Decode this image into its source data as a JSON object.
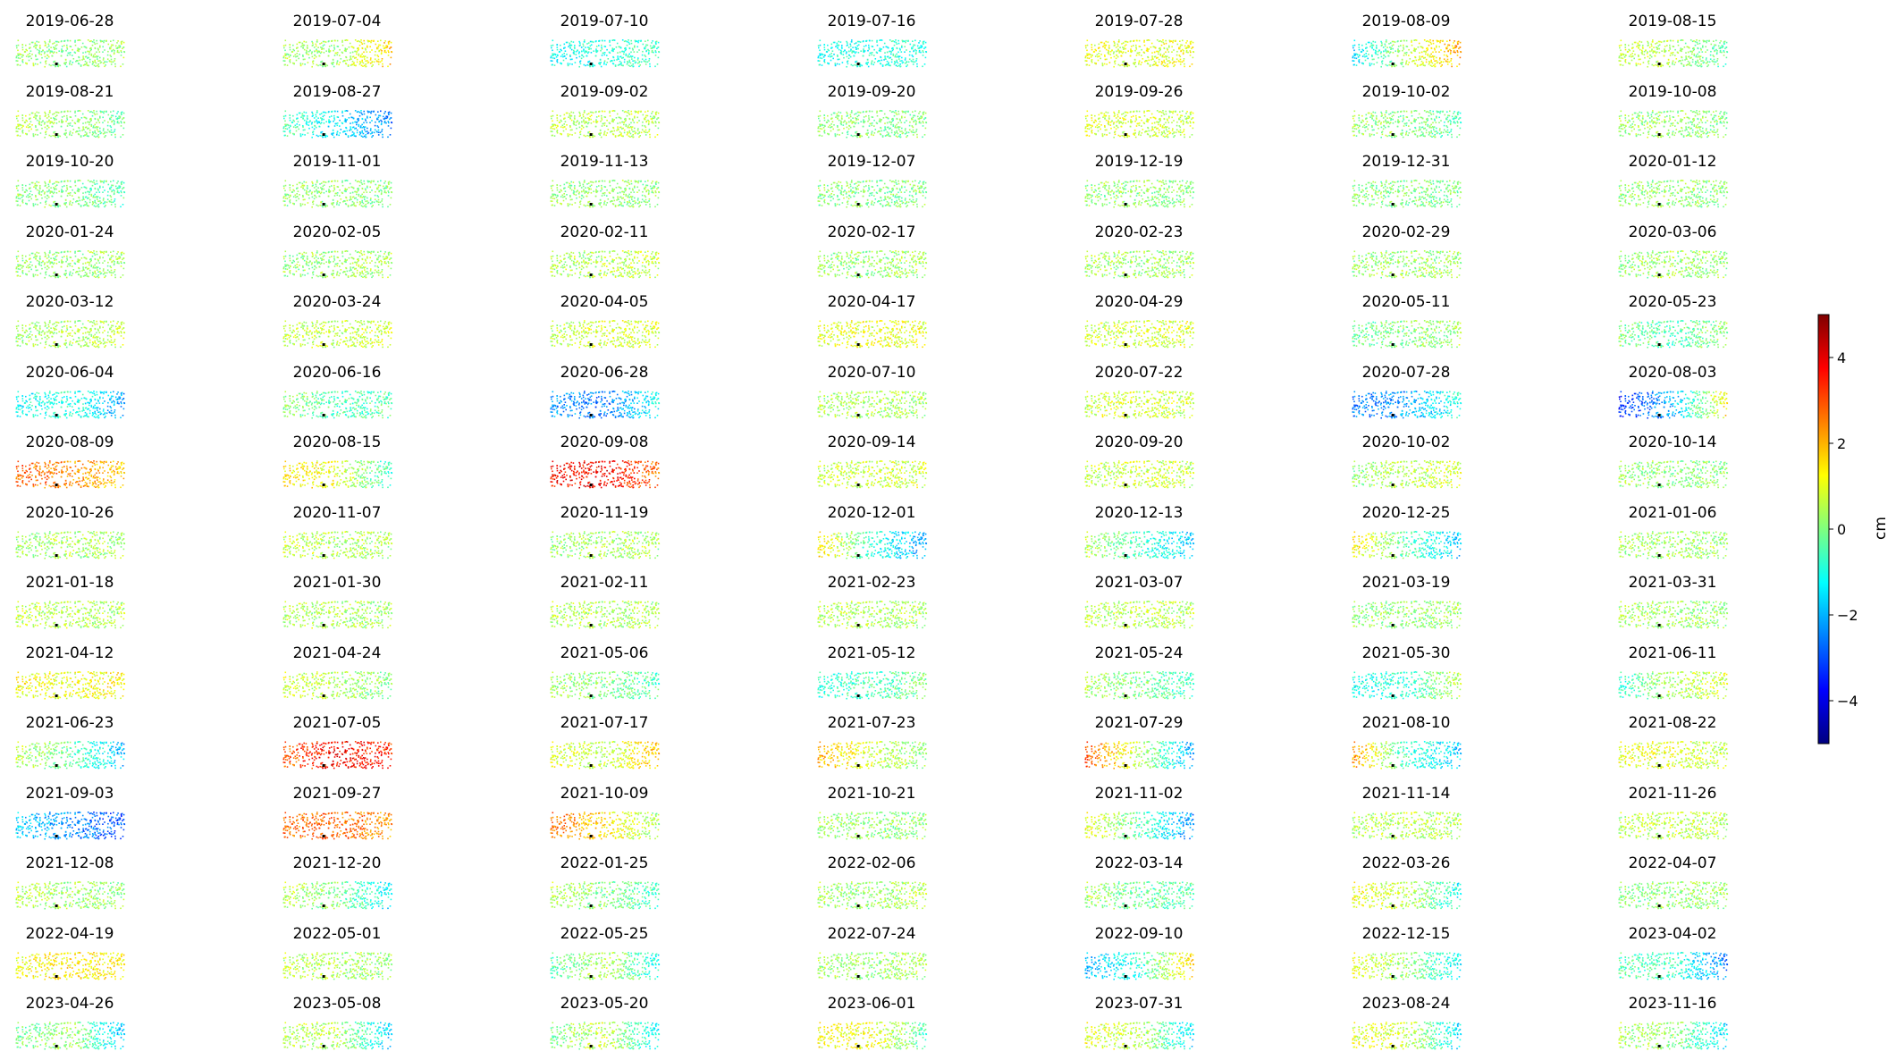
{
  "chart_data": {
    "type": "scatter",
    "subplot_titles": [
      "2019-06-28",
      "2019-07-04",
      "2019-07-10",
      "2019-07-16",
      "2019-07-28",
      "2019-08-09",
      "2019-08-15",
      "2019-08-21",
      "2019-08-27",
      "2019-09-02",
      "2019-09-20",
      "2019-09-26",
      "2019-10-02",
      "2019-10-08",
      "2019-10-20",
      "2019-11-01",
      "2019-11-13",
      "2019-12-07",
      "2019-12-19",
      "2019-12-31",
      "2020-01-12",
      "2020-01-24",
      "2020-02-05",
      "2020-02-11",
      "2020-02-17",
      "2020-02-23",
      "2020-02-29",
      "2020-03-06",
      "2020-03-12",
      "2020-03-24",
      "2020-04-05",
      "2020-04-17",
      "2020-04-29",
      "2020-05-11",
      "2020-05-23",
      "2020-06-04",
      "2020-06-16",
      "2020-06-28",
      "2020-07-10",
      "2020-07-22",
      "2020-07-28",
      "2020-08-03",
      "2020-08-09",
      "2020-08-15",
      "2020-09-08",
      "2020-09-14",
      "2020-09-20",
      "2020-10-02",
      "2020-10-14",
      "2020-10-26",
      "2020-11-07",
      "2020-11-19",
      "2020-12-01",
      "2020-12-13",
      "2020-12-25",
      "2021-01-06",
      "2021-01-18",
      "2021-01-30",
      "2021-02-11",
      "2021-02-23",
      "2021-03-07",
      "2021-03-19",
      "2021-03-31",
      "2021-04-12",
      "2021-04-24",
      "2021-05-06",
      "2021-05-12",
      "2021-05-24",
      "2021-05-30",
      "2021-06-11",
      "2021-06-23",
      "2021-07-05",
      "2021-07-17",
      "2021-07-23",
      "2021-07-29",
      "2021-08-10",
      "2021-08-22",
      "2021-09-03",
      "2021-09-27",
      "2021-10-09",
      "2021-10-21",
      "2021-11-02",
      "2021-11-14",
      "2021-11-26",
      "2021-12-08",
      "2021-12-20",
      "2022-01-25",
      "2022-02-06",
      "2022-03-14",
      "2022-03-26",
      "2022-04-07",
      "2022-04-19",
      "2022-05-01",
      "2022-05-25",
      "2022-07-24",
      "2022-09-10",
      "2022-12-15",
      "2023-04-02",
      "2023-04-26",
      "2023-05-08",
      "2023-05-20",
      "2023-06-01",
      "2023-07-31",
      "2023-08-24",
      "2023-11-16"
    ],
    "panel_patterns": [
      [
        0.4,
        0.0,
        0.3
      ],
      [
        0.3,
        0.3,
        1.8
      ],
      [
        -1.2,
        -0.8,
        -0.6
      ],
      [
        -1.0,
        -1.0,
        -0.8
      ],
      [
        1.0,
        0.8,
        1.2
      ],
      [
        -1.6,
        0.5,
        2.2
      ],
      [
        0.8,
        0.5,
        -0.5
      ],
      [
        0.6,
        0.2,
        -0.3
      ],
      [
        -0.4,
        -1.4,
        -2.6
      ],
      [
        0.6,
        0.6,
        0.5
      ],
      [
        0.3,
        0.0,
        0.0
      ],
      [
        1.0,
        0.8,
        0.6
      ],
      [
        0.3,
        0.0,
        -0.4
      ],
      [
        0.3,
        0.2,
        0.1
      ],
      [
        0.2,
        0.0,
        -0.5
      ],
      [
        0.2,
        0.1,
        0.0
      ],
      [
        0.2,
        0.2,
        0.1
      ],
      [
        0.1,
        0.0,
        0.0
      ],
      [
        0.2,
        0.2,
        0.1
      ],
      [
        0.1,
        0.0,
        0.1
      ],
      [
        0.2,
        0.2,
        0.0
      ],
      [
        0.2,
        0.2,
        0.3
      ],
      [
        0.2,
        0.3,
        0.5
      ],
      [
        0.4,
        0.5,
        0.8
      ],
      [
        0.2,
        0.2,
        0.4
      ],
      [
        0.4,
        0.3,
        0.3
      ],
      [
        0.2,
        0.3,
        0.3
      ],
      [
        0.2,
        0.3,
        0.2
      ],
      [
        0.3,
        0.4,
        0.8
      ],
      [
        0.5,
        0.6,
        0.8
      ],
      [
        0.5,
        0.9,
        0.9
      ],
      [
        0.9,
        1.1,
        1.0
      ],
      [
        0.7,
        0.8,
        0.9
      ],
      [
        -0.2,
        0.0,
        0.4
      ],
      [
        0.0,
        -0.5,
        0.3
      ],
      [
        -1.2,
        -0.8,
        -2.2
      ],
      [
        0.3,
        -0.6,
        -0.3
      ],
      [
        -2.2,
        -2.6,
        -1.0
      ],
      [
        0.4,
        0.5,
        0.3
      ],
      [
        0.8,
        0.8,
        0.7
      ],
      [
        -2.6,
        -2.2,
        -0.8
      ],
      [
        -3.4,
        -2.0,
        1.6
      ],
      [
        2.8,
        2.4,
        1.6
      ],
      [
        1.5,
        1.0,
        -0.8
      ],
      [
        3.6,
        3.8,
        2.6
      ],
      [
        0.6,
        0.8,
        0.8
      ],
      [
        0.6,
        0.8,
        0.6
      ],
      [
        0.2,
        0.5,
        0.9
      ],
      [
        0.3,
        0.1,
        0.1
      ],
      [
        0.2,
        0.4,
        0.3
      ],
      [
        0.8,
        0.5,
        0.4
      ],
      [
        0.3,
        0.4,
        0.4
      ],
      [
        1.6,
        -0.8,
        -2.2
      ],
      [
        0.6,
        -0.6,
        -1.8
      ],
      [
        1.4,
        -0.4,
        -1.8
      ],
      [
        0.5,
        0.3,
        0.3
      ],
      [
        0.6,
        0.5,
        0.4
      ],
      [
        0.5,
        0.4,
        0.3
      ],
      [
        0.6,
        0.5,
        0.4
      ],
      [
        0.5,
        0.5,
        0.4
      ],
      [
        0.6,
        0.6,
        0.5
      ],
      [
        0.2,
        0.1,
        0.3
      ],
      [
        0.4,
        0.3,
        0.2
      ],
      [
        1.2,
        1.0,
        1.4
      ],
      [
        0.8,
        0.4,
        0.0
      ],
      [
        0.3,
        0.0,
        -0.6
      ],
      [
        -0.8,
        -0.6,
        0.0
      ],
      [
        0.4,
        0.0,
        -0.8
      ],
      [
        -1.2,
        -0.8,
        0.6
      ],
      [
        -0.8,
        0.5,
        0.8
      ],
      [
        0.6,
        -0.2,
        -2.0
      ],
      [
        2.8,
        3.8,
        3.2
      ],
      [
        1.0,
        0.5,
        2.0
      ],
      [
        2.0,
        0.8,
        0.0
      ],
      [
        3.0,
        0.5,
        -2.2
      ],
      [
        2.4,
        -0.8,
        -1.8
      ],
      [
        1.0,
        1.0,
        0.5
      ],
      [
        -1.6,
        -2.4,
        -3.0
      ],
      [
        2.6,
        2.8,
        2.2
      ],
      [
        2.8,
        1.5,
        0.2
      ],
      [
        0.4,
        0.2,
        0.2
      ],
      [
        1.2,
        -0.4,
        -2.4
      ],
      [
        0.5,
        0.6,
        0.4
      ],
      [
        0.6,
        0.7,
        0.5
      ],
      [
        0.6,
        0.2,
        0.2
      ],
      [
        0.6,
        0.0,
        -1.4
      ],
      [
        0.6,
        0.0,
        -0.6
      ],
      [
        0.4,
        0.2,
        0.6
      ],
      [
        0.4,
        -0.3,
        -0.4
      ],
      [
        1.2,
        0.6,
        -1.2
      ],
      [
        0.0,
        0.2,
        0.2
      ],
      [
        1.0,
        1.5,
        1.4
      ],
      [
        0.6,
        0.4,
        0.2
      ],
      [
        -0.6,
        0.6,
        -1.2
      ],
      [
        0.4,
        0.2,
        0.5
      ],
      [
        -2.0,
        -0.8,
        1.8
      ],
      [
        1.0,
        0.2,
        -1.4
      ],
      [
        -0.4,
        -0.6,
        -2.6
      ],
      [
        -0.2,
        0.4,
        -2.0
      ],
      [
        0.4,
        0.6,
        -1.8
      ],
      [
        -0.2,
        0.8,
        -1.4
      ],
      [
        1.2,
        1.2,
        -0.6
      ],
      [
        1.0,
        0.6,
        -1.6
      ],
      [
        1.0,
        0.8,
        -1.6
      ],
      [
        0.4,
        0.2,
        -1.6
      ]
    ],
    "colorbar": {
      "label": "cm",
      "colormap": "jet",
      "range": [
        -5,
        5
      ],
      "ticks": [
        4,
        2,
        0,
        -2,
        -4
      ],
      "tick_labels": [
        "4",
        "2",
        "0",
        "−2",
        "−4"
      ]
    },
    "grid": false,
    "legend": "none"
  }
}
